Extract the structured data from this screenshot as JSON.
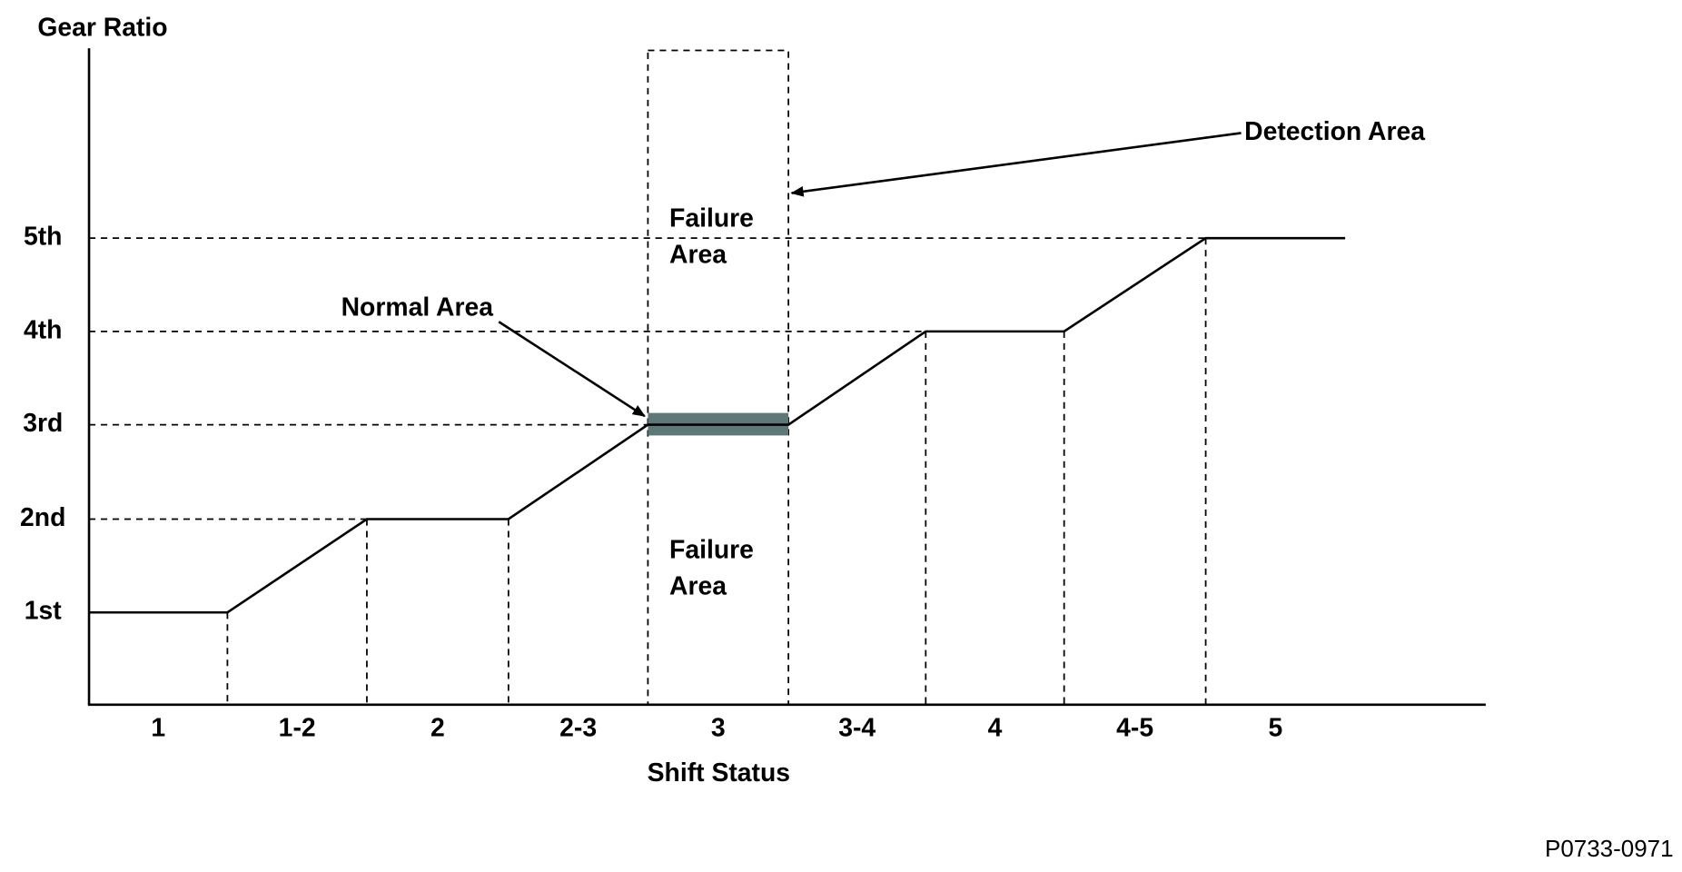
{
  "axes": {
    "y_title": "Gear Ratio",
    "x_title": "Shift Status",
    "gears": [
      "1st",
      "2nd",
      "3rd",
      "4th",
      "5th"
    ],
    "shift_states": [
      "1",
      "1-2",
      "2",
      "2-3",
      "3",
      "3-4",
      "4",
      "4-5",
      "5"
    ]
  },
  "annotations": {
    "detection_area": "Detection Area",
    "normal_area": "Normal Area",
    "failure_area_upper": [
      "Failure",
      "Area"
    ],
    "failure_area_lower": [
      "Failure",
      "Area"
    ]
  },
  "figure_id": "P0733-0971"
}
